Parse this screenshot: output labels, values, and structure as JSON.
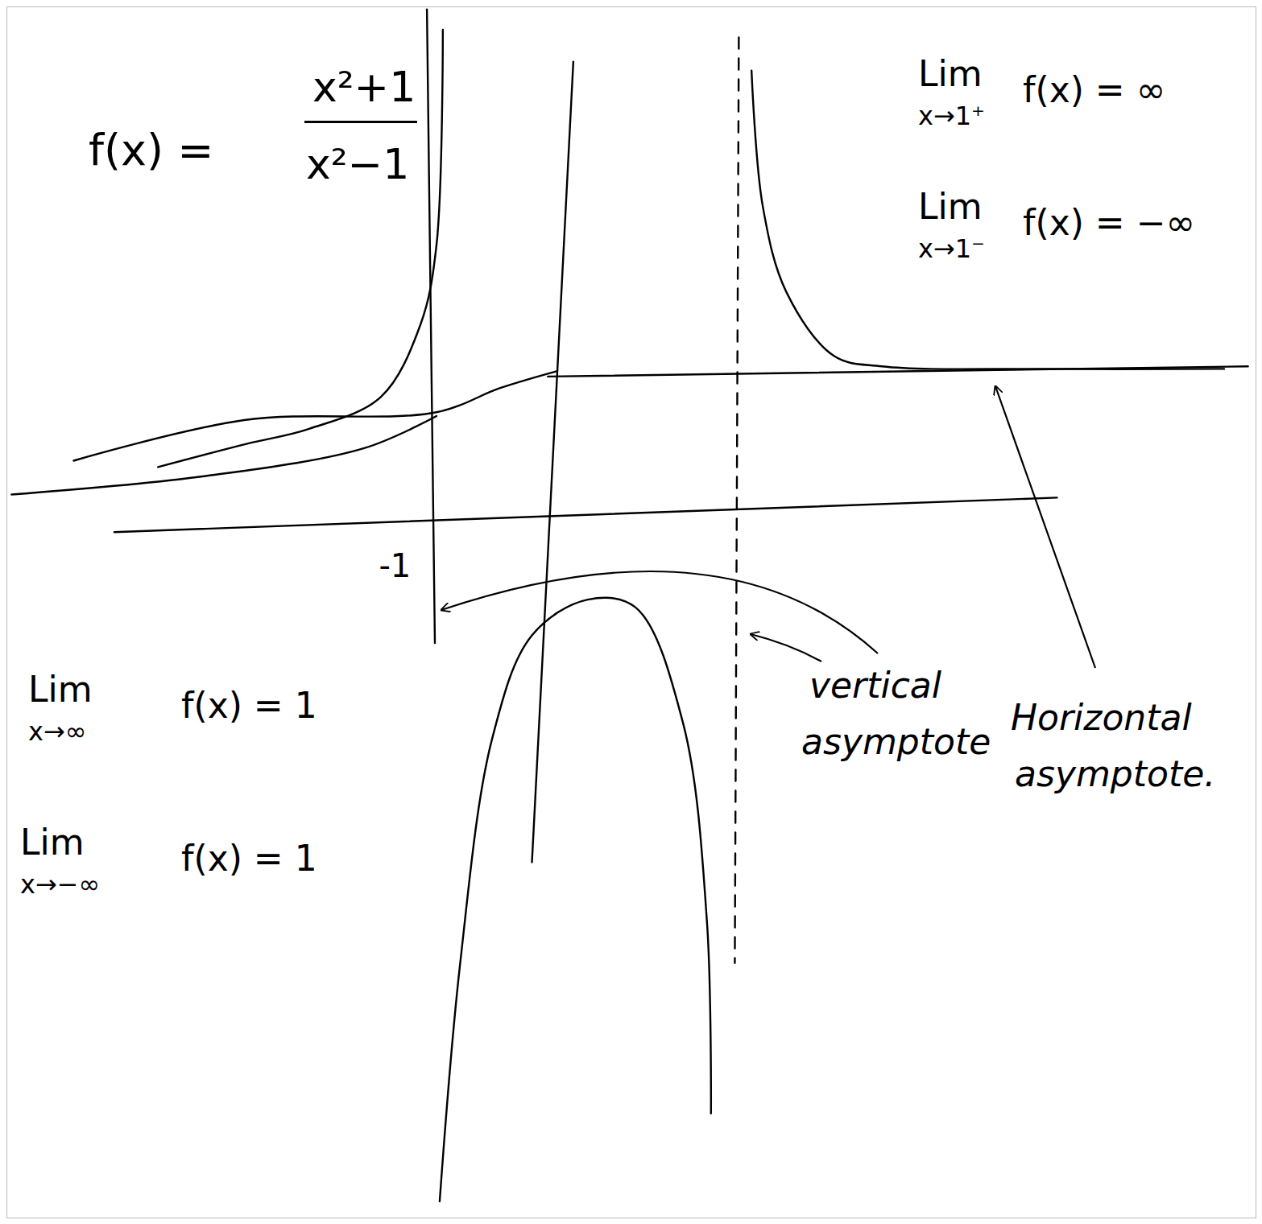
{
  "chart_data": {
    "type": "line",
    "color": "#000000",
    "formula": {
      "left": "f(x) =",
      "numerator": "x²+1",
      "denominator": "x²−1"
    },
    "xlim": [
      -3.55,
      4.3
    ],
    "ylim": [
      -5.6,
      3.9
    ],
    "xticks": [
      -1
    ],
    "yticks": [],
    "tick_labels": "x",
    "grid": false,
    "limits": [
      {
        "lim": "Lim",
        "approach": "x→1⁺",
        "expression": "f(x) = ∞"
      },
      {
        "lim": "Lim",
        "approach": "x→1⁻",
        "expression": "f(x) = −∞"
      },
      {
        "lim": "Lim",
        "approach": "x→∞",
        "expression": "f(x) = 1"
      },
      {
        "lim": "Lim",
        "approach": "x→−∞",
        "expression": "f(x) = 1"
      }
    ],
    "annotations": [
      {
        "lines": [
          "vertical",
          "asymptote"
        ]
      },
      {
        "lines": [
          "Horizontal",
          "asymptote."
        ]
      }
    ],
    "series": [
      {
        "line_style": "solid",
        "x": [
          1.13,
          1.2,
          1.35,
          1.65,
          1.95,
          2.95,
          4.1
        ],
        "values": [
          3.4,
          2.34,
          1.66,
          1.16,
          1.08,
          1.06,
          1.06
        ]
      },
      {
        "line_style": "solid",
        "x": [
          -0.81,
          -0.85,
          -0.95,
          -1.2,
          -1.65,
          -2.05,
          -2.6
        ],
        "values": [
          3.72,
          2.03,
          1.41,
          0.84,
          0.59,
          0.47,
          0.29
        ]
      },
      {
        "line_style": "solid",
        "x": [
          -0.83,
          -0.7,
          -0.5,
          -0.25,
          0.1,
          0.4,
          0.7,
          0.85,
          0.875
        ],
        "values": [
          -5.47,
          -3.59,
          -1.84,
          -1.03,
          -0.75,
          -0.81,
          -1.72,
          -3.28,
          -4.78
        ]
      },
      {
        "line_style": "solid",
        "x": [
          -3.13,
          -2.05,
          -0.85,
          -0.45,
          -0.1
        ],
        "values": [
          0.34,
          0.66,
          0.72,
          0.91,
          1.04
        ]
      },
      {
        "line_style": "solid",
        "x": [
          -3.52,
          -2.3,
          -1.3,
          -0.85
        ],
        "values": [
          0.075,
          0.22,
          0.44,
          0.69
        ]
      },
      {
        "line_style": "solid",
        "x": [
          -2.875,
          3.05
        ],
        "values": [
          -0.22,
          0.05
        ]
      },
      {
        "line_style": "solid",
        "x": [
          0.01,
          -0.25
        ],
        "values": [
          3.47,
          -2.81
        ]
      },
      {
        "line_style": "solid",
        "x": [
          -0.15,
          4.25
        ],
        "values": [
          1.0,
          1.08
        ]
      },
      {
        "line_style": "dashed",
        "x": [
          1.05,
          1.025
        ],
        "values": [
          3.66,
          -3.6
        ]
      },
      {
        "line_style": "solid",
        "x": [
          -0.91,
          -0.86
        ],
        "values": [
          3.88,
          -1.09
        ]
      }
    ]
  }
}
